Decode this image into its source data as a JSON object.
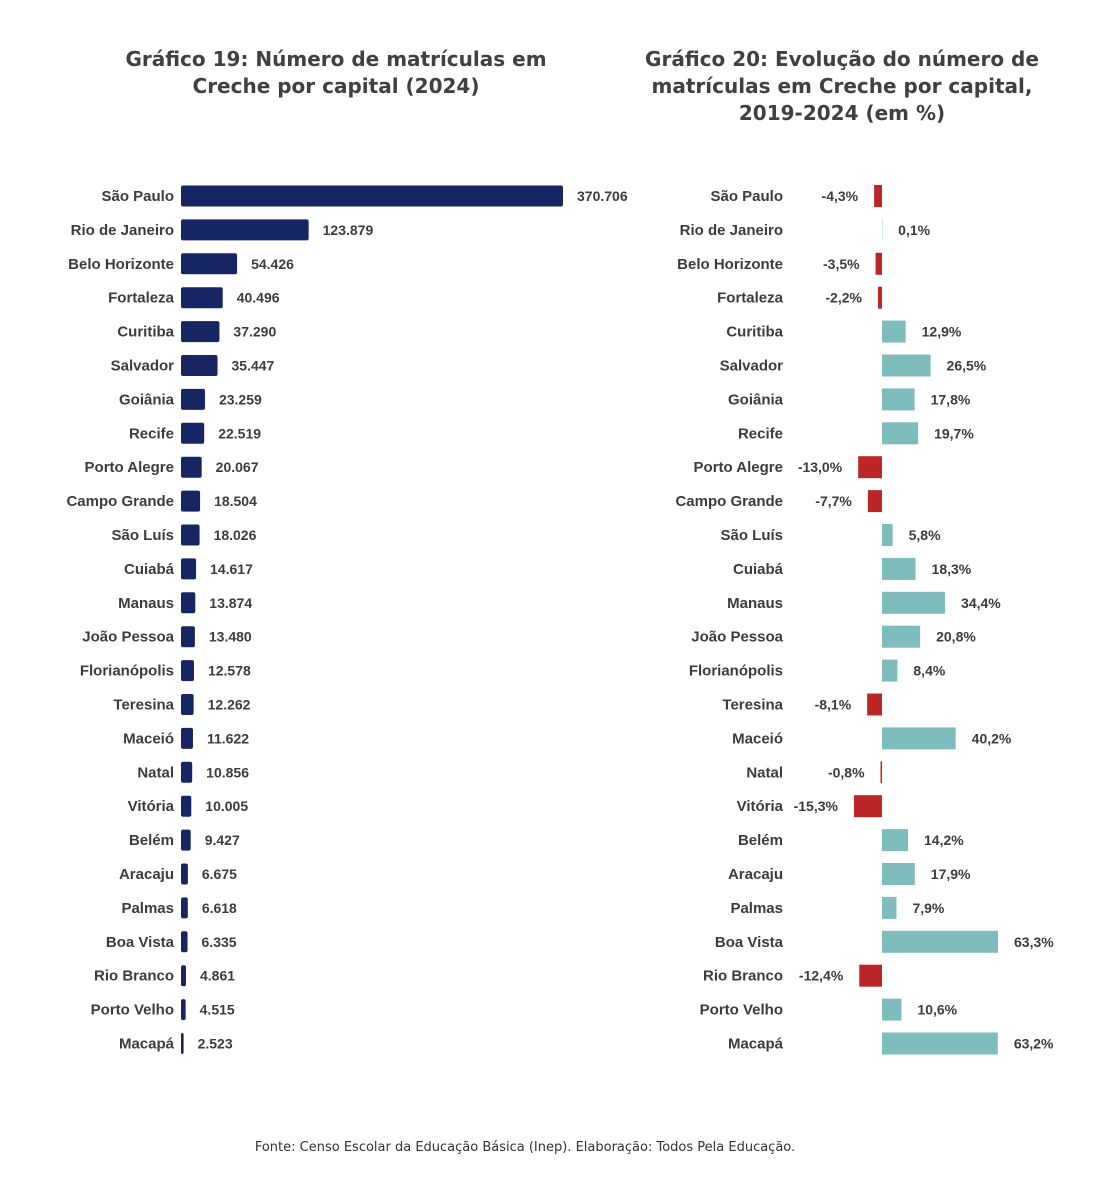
{
  "colors": {
    "bar19": "#172663",
    "positive": "#7fbcbc",
    "negative": "#bd2626",
    "text": "#3c3c3c"
  },
  "source": "Fonte: Censo Escolar da Educação Básica (Inep). Elaboração: Todos Pela Educação.",
  "chart_data": [
    {
      "id": "grafico-19",
      "type": "bar",
      "orientation": "horizontal",
      "title_lines": [
        "Gráfico 19: Número de matrículas em",
        "Creche por capital (2024)"
      ],
      "categories": [
        "São Paulo",
        "Rio de Janeiro",
        "Belo Horizonte",
        "Fortaleza",
        "Curitiba",
        "Salvador",
        "Goiânia",
        "Recife",
        "Porto Alegre",
        "Campo Grande",
        "São Luís",
        "Cuiabá",
        "Manaus",
        "João Pessoa",
        "Florianópolis",
        "Teresina",
        "Maceió",
        "Natal",
        "Vitória",
        "Belém",
        "Aracaju",
        "Palmas",
        "Boa Vista",
        "Rio Branco",
        "Porto Velho",
        "Macapá"
      ],
      "values": [
        370706,
        123879,
        54426,
        40496,
        37290,
        35447,
        23259,
        22519,
        20067,
        18504,
        18026,
        14617,
        13874,
        13480,
        12578,
        12262,
        11622,
        10856,
        10005,
        9427,
        6675,
        6618,
        6335,
        4861,
        4515,
        2523
      ],
      "labels": [
        "370.706",
        "123.879",
        "54.426",
        "40.496",
        "37.290",
        "35.447",
        "23.259",
        "22.519",
        "20.067",
        "18.504",
        "18.026",
        "14.617",
        "13.874",
        "13.480",
        "12.578",
        "12.262",
        "11.622",
        "10.856",
        "10.005",
        "9.427",
        "6.675",
        "6.618",
        "6.335",
        "4.861",
        "4.515",
        "2.523"
      ],
      "xlim": [
        0,
        370706
      ],
      "grid": false,
      "legend": "none"
    },
    {
      "id": "grafico-20",
      "type": "bar",
      "orientation": "horizontal",
      "title_lines": [
        "Gráfico 20: Evolução do número de",
        "matrículas em Creche por capital,",
        "2019-2024 (em %)"
      ],
      "categories": [
        "São Paulo",
        "Rio de Janeiro",
        "Belo Horizonte",
        "Fortaleza",
        "Curitiba",
        "Salvador",
        "Goiânia",
        "Recife",
        "Porto Alegre",
        "Campo Grande",
        "São Luís",
        "Cuiabá",
        "Manaus",
        "João Pessoa",
        "Florianópolis",
        "Teresina",
        "Maceió",
        "Natal",
        "Vitória",
        "Belém",
        "Aracaju",
        "Palmas",
        "Boa Vista",
        "Rio Branco",
        "Porto Velho",
        "Macapá"
      ],
      "values": [
        -4.3,
        0.1,
        -3.5,
        -2.2,
        12.9,
        26.5,
        17.8,
        19.7,
        -13.0,
        -7.7,
        5.8,
        18.3,
        34.4,
        20.8,
        8.4,
        -8.1,
        40.2,
        -0.8,
        -15.3,
        14.2,
        17.9,
        7.9,
        63.3,
        -12.4,
        10.6,
        63.2
      ],
      "labels": [
        "-4,3%",
        "0,1%",
        "-3,5%",
        "-2,2%",
        "12,9%",
        "26,5%",
        "17,8%",
        "19,7%",
        "-13,0%",
        "-7,7%",
        "5,8%",
        "18,3%",
        "34,4%",
        "20,8%",
        "8,4%",
        "-8,1%",
        "40,2%",
        "-0,8%",
        "-15,3%",
        "14,2%",
        "17,9%",
        "7,9%",
        "63,3%",
        "-12,4%",
        "10,6%",
        "63,2%"
      ],
      "xlim": [
        -15.3,
        63.3
      ],
      "grid": false,
      "legend": "none"
    }
  ]
}
